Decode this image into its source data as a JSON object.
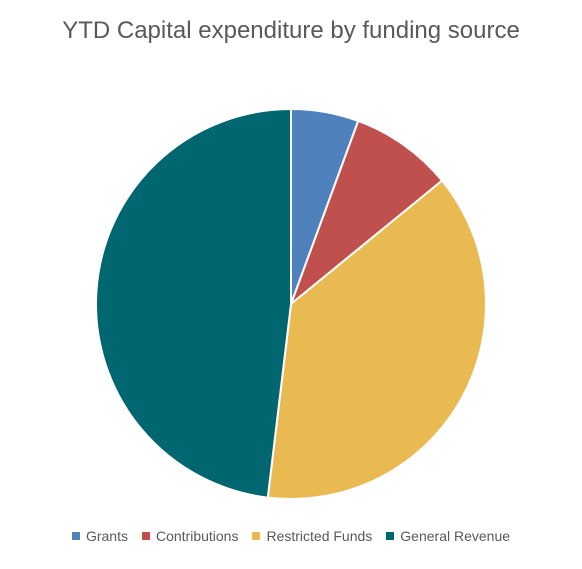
{
  "chart_data": {
    "type": "pie",
    "title": "YTD Capital expenditure by funding source",
    "categories": [
      "Grants",
      "Contributions",
      "Restricted Funds",
      "General Revenue"
    ],
    "values": [
      5.6,
      8.5,
      37.8,
      48.1
    ],
    "colors": [
      "#4f81bd",
      "#c0504d",
      "#e9ba52",
      "#006670"
    ],
    "legend": "bottom"
  }
}
